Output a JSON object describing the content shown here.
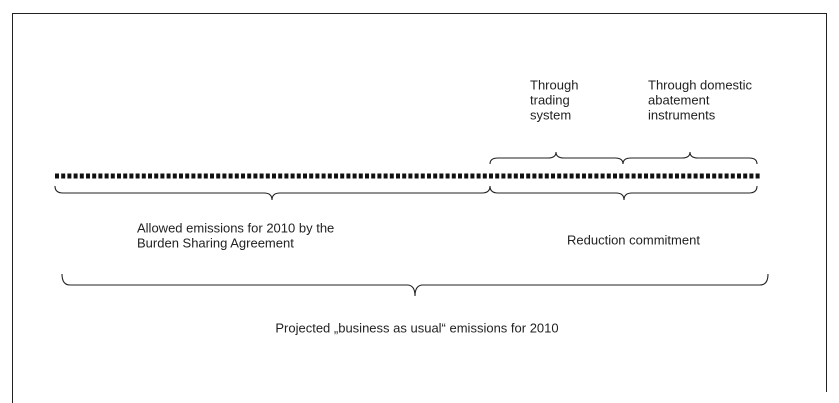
{
  "labels": {
    "trading": [
      "Through",
      "trading",
      "system"
    ],
    "domestic": [
      "Through domestic",
      "abatement",
      "instruments"
    ],
    "allowed": [
      "Allowed emissions for 2010 by the",
      "Burden Sharing Agreement"
    ],
    "reduction": "Reduction commitment",
    "projected": "Projected „business as usual“ emissions for 2010"
  }
}
